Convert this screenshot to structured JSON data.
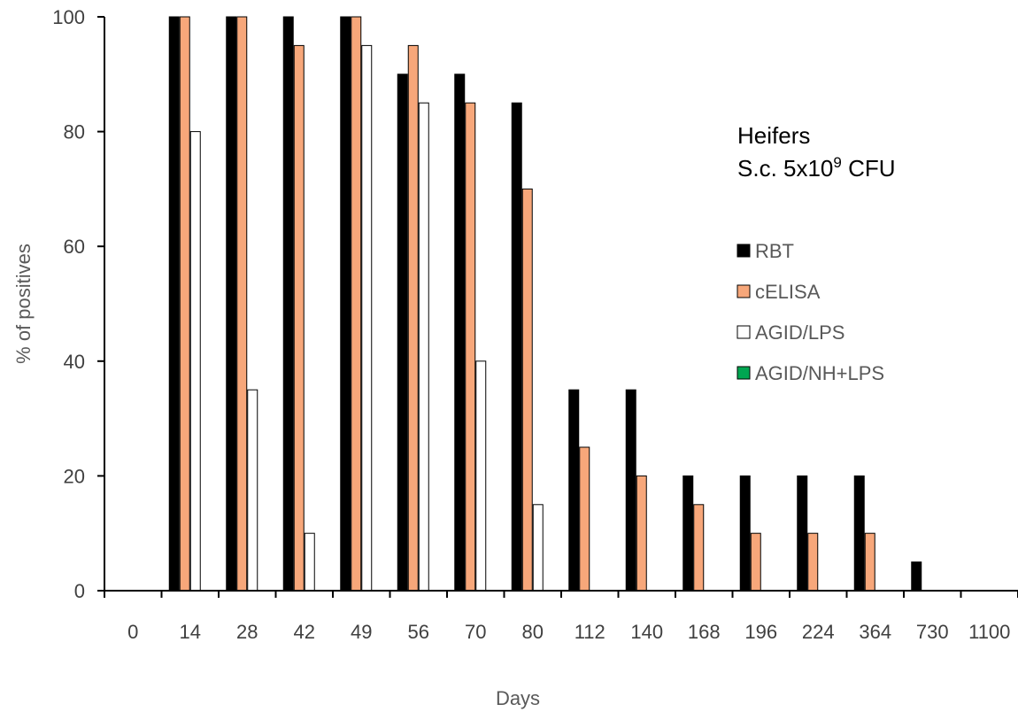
{
  "chart_data": {
    "type": "bar",
    "xlabel": "Days",
    "ylabel": "% of positives",
    "ylim": [
      0,
      100
    ],
    "yticks": [
      "0",
      "20",
      "40",
      "60",
      "80",
      "100"
    ],
    "categories": [
      "0",
      "14",
      "28",
      "42",
      "49",
      "56",
      "70",
      "80",
      "112",
      "140",
      "168",
      "196",
      "224",
      "364",
      "730",
      "1100"
    ],
    "series": [
      {
        "name": "RBT",
        "color": "#000000",
        "values": [
          0,
          100,
          100,
          100,
          100,
          90,
          90,
          85,
          35,
          35,
          20,
          20,
          20,
          20,
          5,
          0
        ]
      },
      {
        "name": "cELISA",
        "color": "#f7a77a",
        "values": [
          0,
          100,
          100,
          95,
          100,
          95,
          85,
          70,
          25,
          20,
          15,
          10,
          10,
          10,
          0,
          0
        ]
      },
      {
        "name": "AGID/LPS",
        "color": "#ffffff",
        "values": [
          0,
          80,
          35,
          10,
          95,
          85,
          40,
          15,
          0,
          0,
          0,
          0,
          0,
          0,
          0,
          0
        ]
      },
      {
        "name": "AGID/NH+LPS",
        "color": "#00a651",
        "values": [
          0,
          0,
          0,
          0,
          0,
          0,
          0,
          0,
          0,
          0,
          0,
          0,
          0,
          0,
          0,
          0
        ]
      }
    ],
    "annotation": {
      "line1": "Heifers",
      "line2_prefix": "S.c. 5x10",
      "line2_sup": "9",
      "line2_suffix": " CFU"
    },
    "legend_position": "right",
    "grid": false
  }
}
